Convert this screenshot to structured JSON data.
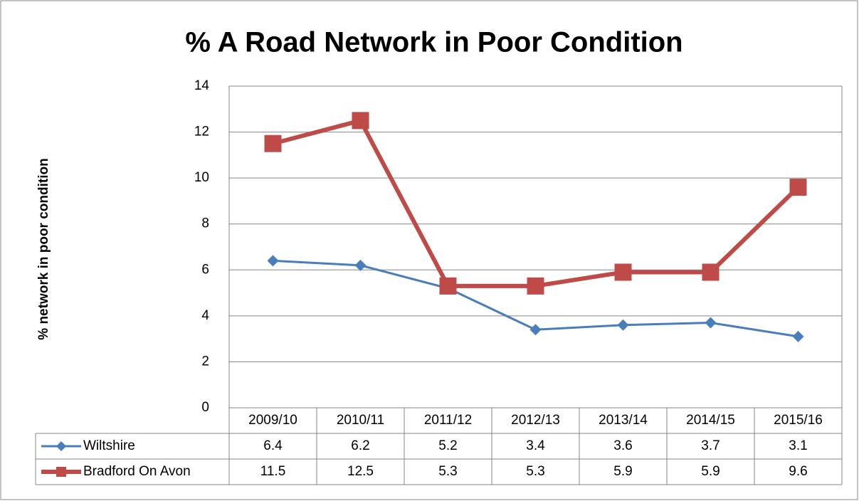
{
  "chart_data": {
    "type": "line",
    "title": "% A Road Network in Poor Condition",
    "y_label": "% network in poor condition",
    "categories": [
      "2009/10",
      "2010/11",
      "2011/12",
      "2012/13",
      "2013/14",
      "2014/15",
      "2015/16"
    ],
    "series": [
      {
        "name": "Wiltshire",
        "color": "#4a7ebb",
        "marker": "diamond",
        "values": [
          6.4,
          6.2,
          5.2,
          3.4,
          3.6,
          3.7,
          3.1
        ]
      },
      {
        "name": "Bradford On Avon",
        "color": "#be4b48",
        "marker": "square",
        "values": [
          11.5,
          12.5,
          5.3,
          5.3,
          5.9,
          5.9,
          9.6
        ]
      }
    ],
    "ylim": [
      0,
      14
    ],
    "yticks": [
      0,
      2,
      4,
      6,
      8,
      10,
      12,
      14
    ],
    "grid": true,
    "data_table": true
  }
}
